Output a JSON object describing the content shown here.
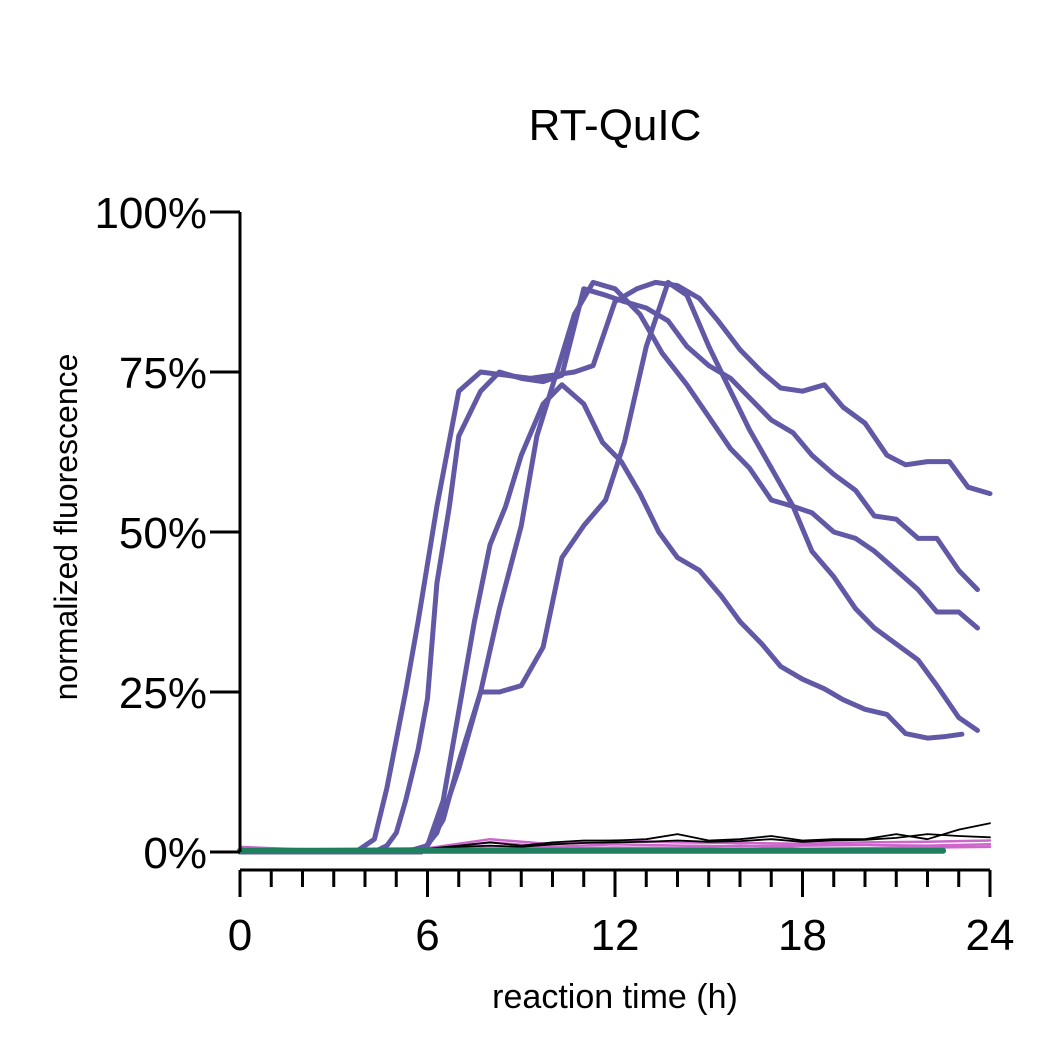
{
  "chart_data": {
    "type": "line",
    "title": "RT-QuIC",
    "xlabel": "reaction time (h)",
    "ylabel": "normalized fluorescence",
    "xlim": [
      0,
      24
    ],
    "ylim": [
      0,
      100
    ],
    "x_ticks": [
      "0",
      "6",
      "12",
      "18",
      "24"
    ],
    "y_ticks": [
      "0%",
      "25%",
      "50%",
      "75%",
      "100%"
    ],
    "x_tick_values": [
      0,
      6,
      12,
      18,
      24
    ],
    "y_tick_values": [
      0,
      25,
      50,
      75,
      100
    ],
    "x_minor_step": 1,
    "grid": false,
    "legend": "none",
    "colors": {
      "positive": "#6159a6",
      "negative_pink": "#cc66cc",
      "negative_black": "#000000",
      "negative_green": "#1f7f5f"
    },
    "series": [
      {
        "group": "positive",
        "x": [
          0,
          1,
          2,
          3,
          3.7,
          4.3,
          4.7,
          5.3,
          5.7,
          6.3,
          7,
          7.7,
          8.5,
          9.3,
          10,
          10.7,
          11.3,
          12,
          12.7,
          13.3,
          14,
          14.7,
          15.3,
          16,
          16.7,
          17.3,
          18,
          18.7,
          19.3,
          20,
          20.7,
          21.3,
          22,
          22.7,
          23.3,
          24
        ],
        "y": [
          0,
          0,
          0,
          0,
          0,
          2,
          10,
          25,
          36,
          54,
          72,
          75,
          74.5,
          74,
          74.5,
          75,
          76,
          86,
          88,
          89,
          88.5,
          86.5,
          83,
          78.5,
          75,
          72.5,
          72,
          73,
          69.5,
          67,
          62,
          60.5,
          61,
          61,
          57,
          56
        ]
      },
      {
        "group": "positive",
        "x": [
          0,
          1,
          2,
          3,
          3.7,
          4.3,
          4.7,
          5,
          5.3,
          5.7,
          6,
          6.3,
          6.7,
          7,
          7.7,
          8.3,
          9,
          9.7,
          10.3,
          11,
          11.7,
          12.3,
          13,
          13.7,
          14.3,
          15,
          15.7,
          16.3,
          17,
          17.7,
          18.3,
          19,
          19.7,
          20.3,
          21,
          21.7,
          22.3,
          23,
          23.6
        ],
        "y": [
          0,
          0,
          0,
          0,
          0,
          0,
          1,
          3,
          8,
          16,
          24,
          42,
          54,
          65,
          72,
          75,
          74,
          73.5,
          74.5,
          88,
          87,
          86,
          85,
          83,
          79,
          76,
          74,
          71,
          67.5,
          65.5,
          62,
          59,
          56.5,
          52.5,
          52,
          49,
          49,
          44,
          41
        ]
      },
      {
        "group": "positive",
        "x": [
          0,
          1,
          2,
          3,
          4,
          4.7,
          5.3,
          6,
          6.5,
          7,
          7.5,
          8,
          8.5,
          9,
          9.7,
          10.3,
          11,
          11.6,
          12.2,
          12.8,
          13.4,
          14,
          14.7,
          15.4,
          16,
          16.7,
          17.3,
          18,
          18.7,
          19.3,
          20,
          20.7,
          21.3,
          22,
          22.5,
          23.1
        ],
        "y": [
          0,
          0,
          0,
          0,
          0,
          0,
          0,
          1,
          8,
          22,
          36,
          48,
          54,
          62,
          70,
          73,
          70,
          64,
          61,
          56,
          50,
          46,
          44,
          40,
          36,
          32.5,
          29,
          27,
          25.5,
          23.8,
          22.3,
          21.5,
          18.5,
          17.8,
          18,
          18.4
        ]
      },
      {
        "group": "positive",
        "x": [
          0,
          1,
          2,
          3,
          4,
          4.7,
          5.3,
          5.8,
          6.3,
          7,
          7.7,
          8.3,
          9,
          9.5,
          10.2,
          10.7,
          11.3,
          12,
          12.8,
          13.5,
          14.3,
          15,
          15.7,
          16.3,
          17,
          17.7,
          18.3,
          19,
          19.7,
          20.3,
          21,
          21.7,
          22.3,
          23,
          23.6
        ],
        "y": [
          0,
          0,
          0,
          0,
          0,
          0,
          0,
          0,
          3,
          13,
          25,
          38,
          51,
          65,
          76,
          84,
          89,
          88,
          84,
          78,
          73,
          68,
          63,
          60,
          55,
          54,
          53,
          50,
          49,
          47,
          44,
          41,
          37.5,
          37.5,
          35
        ]
      },
      {
        "group": "positive",
        "x": [
          0,
          1,
          2,
          3,
          4,
          4.7,
          5.3,
          6,
          6.5,
          7,
          7.7,
          8.3,
          9,
          9.7,
          10.3,
          11,
          11.7,
          12.3,
          13,
          13.7,
          14.3,
          15,
          15.7,
          16.3,
          17,
          17.7,
          18.3,
          19,
          19.7,
          20.3,
          21,
          21.7,
          22.3,
          23,
          23.6
        ],
        "y": [
          0,
          0,
          0,
          0,
          0,
          0,
          0,
          1,
          5,
          14,
          25,
          25,
          26,
          32,
          46,
          51,
          55,
          64,
          79,
          89,
          87,
          79,
          72,
          66,
          60,
          54,
          47,
          43,
          38,
          35,
          32.5,
          30,
          26,
          21,
          19
        ]
      },
      {
        "group": "negative_pink",
        "x": [
          0,
          2,
          4,
          6,
          8,
          10,
          12,
          14,
          16,
          18,
          20,
          22,
          24
        ],
        "y": [
          0.8,
          0.4,
          0.5,
          0.6,
          2.0,
          1.2,
          1.8,
          1.5,
          1.4,
          1.3,
          1.5,
          1.6,
          1.8
        ]
      },
      {
        "group": "negative_pink",
        "x": [
          0,
          2,
          4,
          6,
          8,
          10,
          12,
          14,
          16,
          18,
          20,
          22,
          24
        ],
        "y": [
          0.5,
          0.3,
          0.2,
          0.4,
          1.5,
          0.8,
          1.2,
          1.0,
          0.9,
          1.0,
          1.1,
          1.0,
          1.2
        ]
      },
      {
        "group": "negative_pink",
        "x": [
          0,
          2,
          4,
          6,
          8,
          10,
          12,
          14,
          16,
          18,
          20,
          22,
          24
        ],
        "y": [
          0.2,
          0.1,
          0.2,
          0.3,
          0.9,
          0.5,
          0.7,
          0.6,
          1.0,
          0.5,
          0.6,
          0.7,
          0.8
        ]
      },
      {
        "group": "negative_black",
        "x": [
          0,
          2,
          4,
          6,
          7,
          8,
          9,
          10,
          11,
          12,
          13,
          14,
          15,
          16,
          17,
          18,
          19,
          20,
          21,
          22,
          23,
          24
        ],
        "y": [
          0.5,
          0.3,
          0.4,
          0.5,
          1.0,
          1.5,
          1.0,
          1.5,
          1.8,
          1.8,
          2.0,
          2.8,
          1.8,
          2.0,
          2.5,
          1.8,
          2.0,
          2.0,
          2.8,
          2.0,
          3.5,
          4.5
        ]
      },
      {
        "group": "negative_black",
        "x": [
          0,
          2,
          4,
          6,
          7,
          8,
          9,
          10,
          11,
          12,
          13,
          14,
          15,
          16,
          17,
          18,
          19,
          20,
          21,
          22,
          23,
          24
        ],
        "y": [
          0.3,
          0.2,
          0.3,
          0.4,
          0.8,
          1.0,
          0.8,
          1.2,
          1.4,
          1.5,
          1.6,
          1.8,
          1.6,
          1.7,
          2.0,
          1.6,
          1.8,
          1.9,
          2.2,
          2.8,
          2.5,
          2.3
        ]
      },
      {
        "group": "negative_green",
        "x": [
          0,
          22.5
        ],
        "y": [
          0.2,
          0.2
        ]
      }
    ]
  }
}
